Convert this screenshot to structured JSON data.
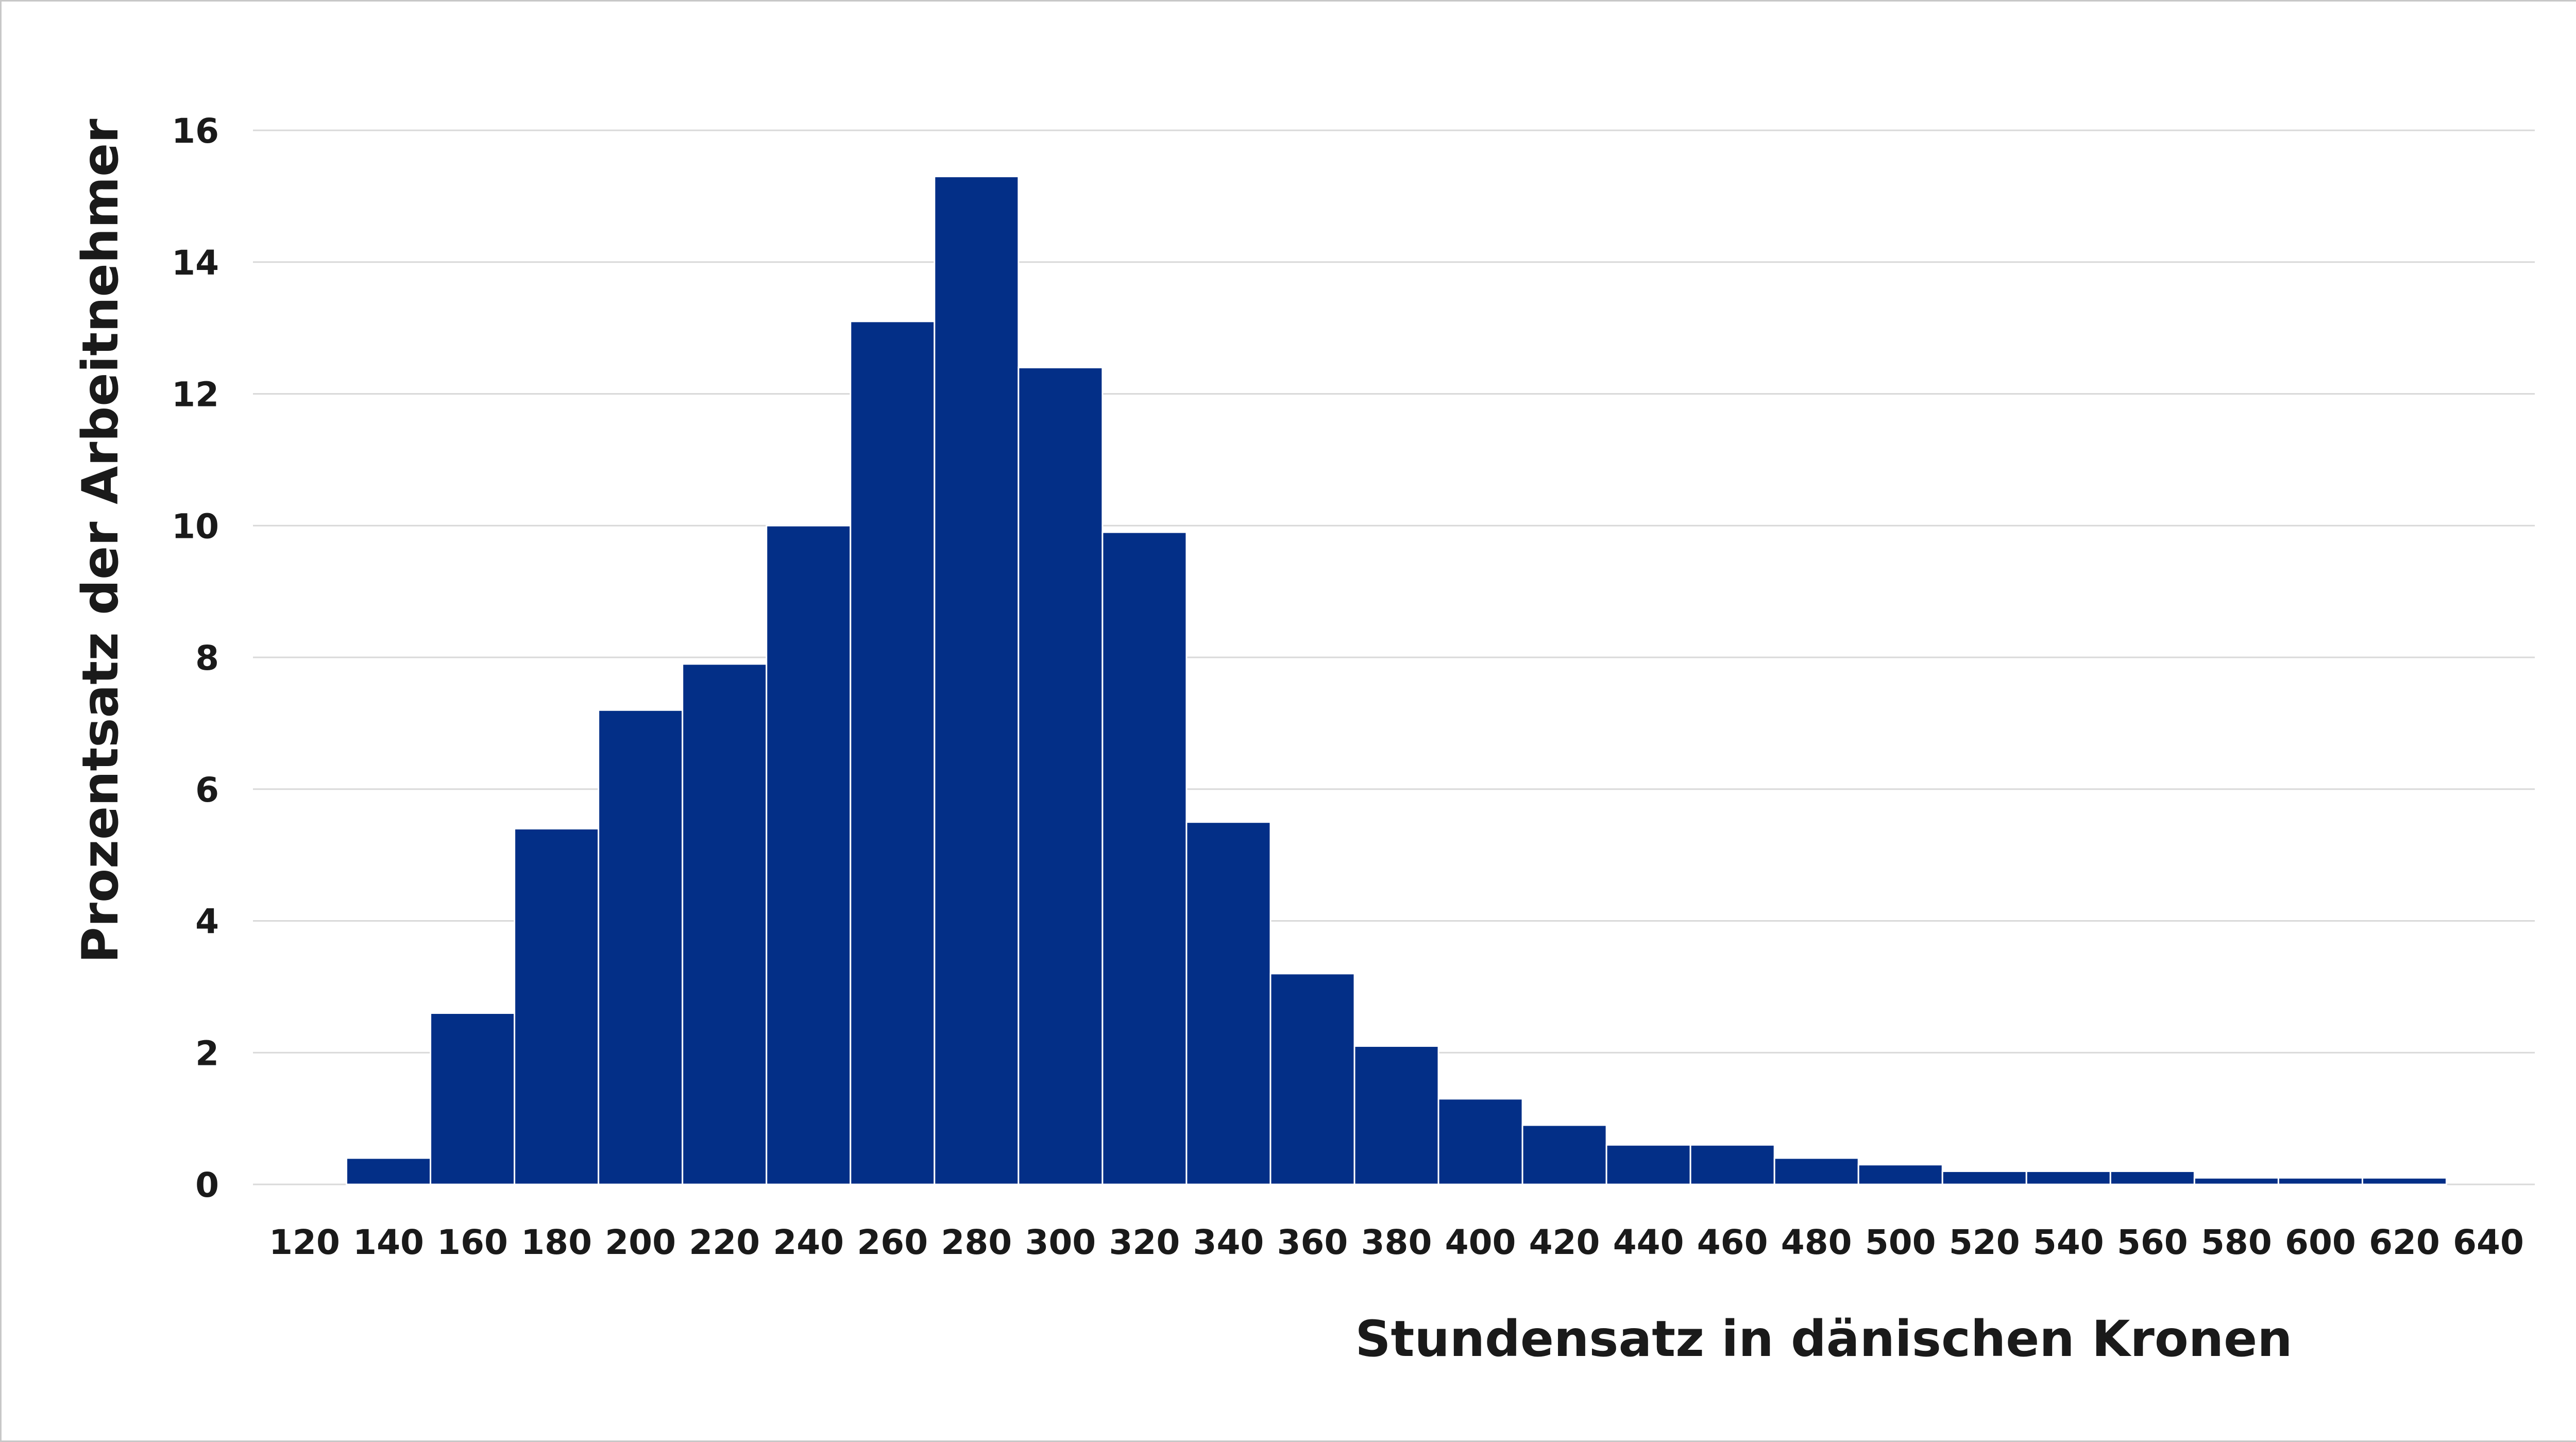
{
  "chart_data": {
    "type": "bar",
    "title": "",
    "xlabel": "Stundensatz in dänischen Kronen",
    "ylabel": "Prozentsatz der Arbeitnehmer",
    "x_ticks": [
      120,
      140,
      160,
      180,
      200,
      220,
      240,
      260,
      280,
      300,
      320,
      340,
      360,
      380,
      400,
      420,
      440,
      460,
      480,
      500,
      520,
      540,
      560,
      580,
      600,
      620,
      640
    ],
    "y_ticks": [
      0,
      2,
      4,
      6,
      8,
      10,
      12,
      14,
      16
    ],
    "xlim": [
      120,
      640
    ],
    "ylim": [
      0,
      16
    ],
    "bin_width": 20,
    "bin_starts": [
      130,
      150,
      170,
      190,
      210,
      230,
      250,
      270,
      290,
      310,
      330,
      350,
      370,
      390,
      410,
      430,
      450,
      470,
      490,
      510,
      530,
      550,
      570,
      590,
      610
    ],
    "values": [
      0.4,
      2.6,
      5.4,
      7.2,
      7.9,
      10.0,
      13.1,
      15.3,
      12.4,
      9.9,
      5.5,
      3.2,
      2.1,
      1.3,
      0.9,
      0.6,
      0.6,
      0.4,
      0.3,
      0.2,
      0.2,
      0.2,
      0.1,
      0.1,
      0.1
    ],
    "grid": true,
    "bar_color": "#032f87",
    "bar_edge_color": "#ffffff",
    "grid_color": "#d9d9d9"
  }
}
